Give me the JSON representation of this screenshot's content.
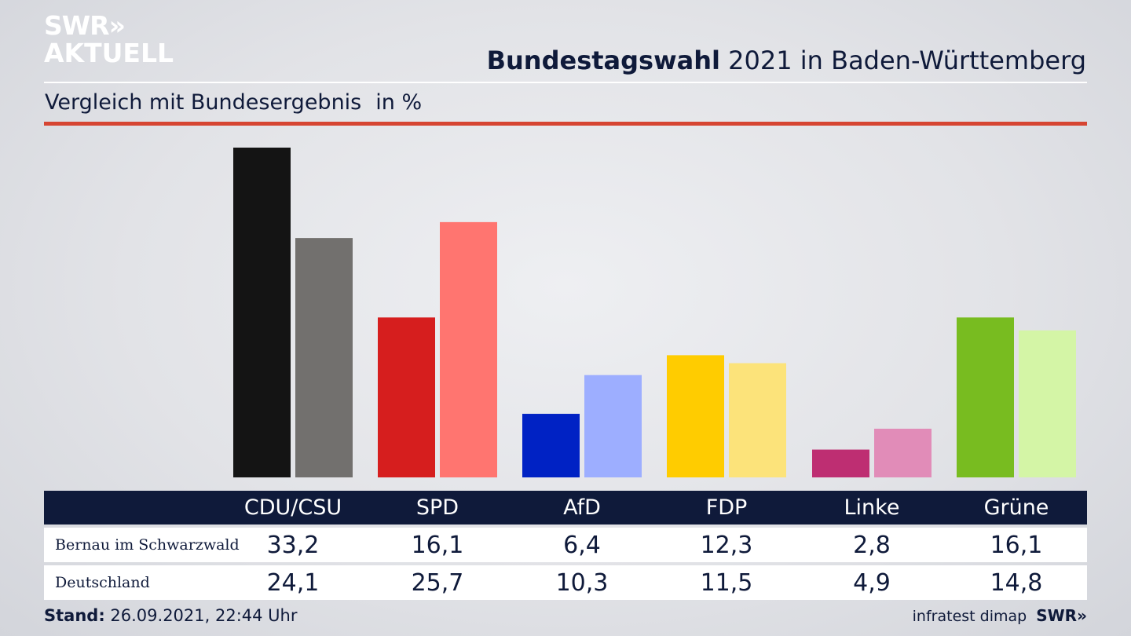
{
  "brand": {
    "logo_line1": "SWR»",
    "logo_line2": "AKTUELL",
    "footer_logo": "SWR»"
  },
  "header": {
    "title_bold": "Bundestagswahl",
    "title_rest": " 2021 in Baden-Württemberg"
  },
  "subtitle": {
    "text": "Vergleich mit Bundesergebnis",
    "unit": "in %"
  },
  "colors": {
    "navy": "#0f1a3a",
    "red_rule": "#d64532"
  },
  "chart_data": {
    "type": "bar",
    "categories": [
      "CDU/CSU",
      "SPD",
      "AfD",
      "FDP",
      "Linke",
      "Grüne"
    ],
    "series": [
      {
        "name": "Bernau im Schwarzwald",
        "values": [
          33.2,
          16.1,
          6.4,
          12.3,
          2.8,
          16.1
        ],
        "colors": [
          "#141414",
          "#d61e1e",
          "#0022c4",
          "#ffcc00",
          "#be2e72",
          "#78bc20"
        ]
      },
      {
        "name": "Deutschland",
        "values": [
          24.1,
          25.7,
          10.3,
          11.5,
          4.9,
          14.8
        ],
        "colors": [
          "#72706e",
          "#ff7570",
          "#9daeff",
          "#fce37a",
          "#e18cb8",
          "#d4f5a6"
        ]
      }
    ],
    "value_labels": [
      [
        "33,2",
        "16,1",
        "6,4",
        "12,3",
        "2,8",
        "16,1"
      ],
      [
        "24,1",
        "25,7",
        "10,3",
        "11,5",
        "4,9",
        "14,8"
      ]
    ],
    "ylim": [
      0,
      33.2
    ],
    "grid": false,
    "legend": "table below chart"
  },
  "footer": {
    "stand_label": "Stand:",
    "stand_value": " 26.09.2021, 22:44 Uhr",
    "source": "infratest dimap"
  }
}
